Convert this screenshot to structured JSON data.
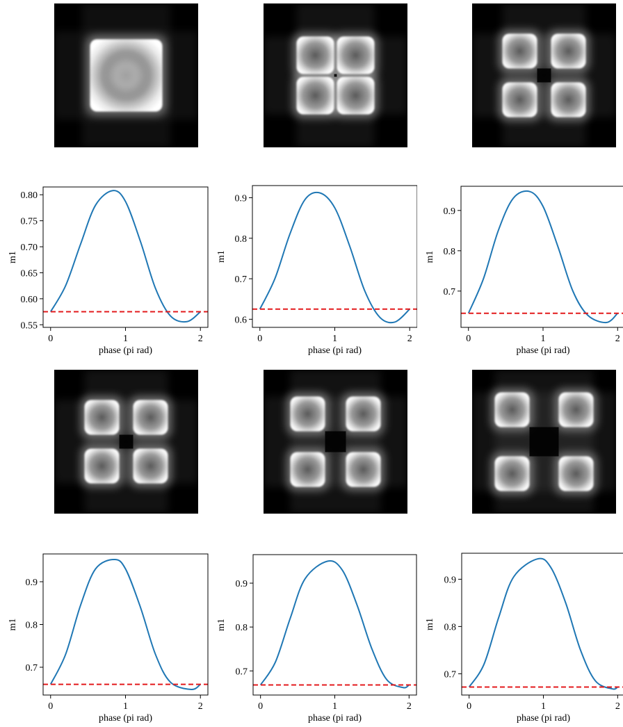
{
  "images": [
    {
      "pattern": "single-square"
    },
    {
      "pattern": "four-lobes-tight"
    },
    {
      "pattern": "four-lobes"
    },
    {
      "pattern": "four-lobes"
    },
    {
      "pattern": "four-lobes-wide"
    },
    {
      "pattern": "four-lobes-wider"
    }
  ],
  "chart_data": [
    {
      "type": "line",
      "xlabel": "phase (pi rad)",
      "ylabel": "m1",
      "xlim": [
        -0.1,
        2.1
      ],
      "ylim": [
        0.545,
        0.815
      ],
      "xticks": [
        0,
        1,
        2
      ],
      "xtick_labels": [
        "0",
        "1",
        "2"
      ],
      "yticks": [
        0.55,
        0.6,
        0.65,
        0.7,
        0.75,
        0.8
      ],
      "ytick_labels": [
        "0.55",
        "0.60",
        "0.65",
        "0.70",
        "0.75",
        "0.80"
      ],
      "series": [
        {
          "x": [
            0,
            0.2,
            0.4,
            0.6,
            0.83,
            1.0,
            1.2,
            1.4,
            1.6,
            1.82,
            2.0
          ],
          "y": [
            0.575,
            0.625,
            0.705,
            0.78,
            0.808,
            0.787,
            0.71,
            0.62,
            0.567,
            0.556,
            0.575
          ],
          "color": "#1f77b4",
          "style": "solid"
        }
      ],
      "hline": {
        "y": 0.575,
        "color": "#e31a1c",
        "style": "dashed"
      }
    },
    {
      "type": "line",
      "xlabel": "phase (pi rad)",
      "ylabel": "m1",
      "xlim": [
        -0.1,
        2.1
      ],
      "ylim": [
        0.58,
        0.93
      ],
      "xticks": [
        0,
        1,
        2
      ],
      "xtick_labels": [
        "0",
        "1",
        "2"
      ],
      "yticks": [
        0.6,
        0.7,
        0.8,
        0.9
      ],
      "ytick_labels": [
        "0.6",
        "0.7",
        "0.8",
        "0.9"
      ],
      "series": [
        {
          "x": [
            0,
            0.2,
            0.4,
            0.6,
            0.8,
            1.0,
            1.2,
            1.4,
            1.6,
            1.8,
            2.0
          ],
          "y": [
            0.625,
            0.7,
            0.81,
            0.895,
            0.912,
            0.875,
            0.78,
            0.67,
            0.605,
            0.593,
            0.625
          ],
          "color": "#1f77b4",
          "style": "solid"
        }
      ],
      "hline": {
        "y": 0.625,
        "color": "#e31a1c",
        "style": "dashed"
      }
    },
    {
      "type": "line",
      "xlabel": "phase (pi rad)",
      "ylabel": "m1",
      "xlim": [
        -0.1,
        2.1
      ],
      "ylim": [
        0.61,
        0.96
      ],
      "xticks": [
        0,
        1,
        2
      ],
      "xtick_labels": [
        "0",
        "1",
        "2"
      ],
      "yticks": [
        0.7,
        0.8,
        0.9
      ],
      "ytick_labels": [
        "0.7",
        "0.8",
        "0.9"
      ],
      "series": [
        {
          "x": [
            0,
            0.2,
            0.4,
            0.6,
            0.82,
            1.0,
            1.2,
            1.4,
            1.6,
            1.85,
            2.0
          ],
          "y": [
            0.645,
            0.73,
            0.85,
            0.93,
            0.947,
            0.91,
            0.81,
            0.7,
            0.64,
            0.622,
            0.645
          ],
          "color": "#1f77b4",
          "style": "solid"
        }
      ],
      "hline": {
        "y": 0.645,
        "color": "#e31a1c",
        "style": "dashed"
      }
    },
    {
      "type": "line",
      "xlabel": "phase (pi rad)",
      "ylabel": "m1",
      "xlim": [
        -0.1,
        2.1
      ],
      "ylim": [
        0.635,
        0.965
      ],
      "xticks": [
        0,
        1,
        2
      ],
      "xtick_labels": [
        "0",
        "1",
        "2"
      ],
      "yticks": [
        0.7,
        0.8,
        0.9
      ],
      "ytick_labels": [
        "0.7",
        "0.8",
        "0.9"
      ],
      "series": [
        {
          "x": [
            0,
            0.2,
            0.4,
            0.6,
            0.85,
            1.0,
            1.2,
            1.4,
            1.6,
            1.88,
            2.0
          ],
          "y": [
            0.66,
            0.73,
            0.845,
            0.93,
            0.952,
            0.93,
            0.84,
            0.73,
            0.665,
            0.648,
            0.66
          ],
          "color": "#1f77b4",
          "style": "solid"
        }
      ],
      "hline": {
        "y": 0.66,
        "color": "#e31a1c",
        "style": "dashed"
      }
    },
    {
      "type": "line",
      "xlabel": "phase (pi rad)",
      "ylabel": "m1",
      "xlim": [
        -0.1,
        2.1
      ],
      "ylim": [
        0.645,
        0.965
      ],
      "xticks": [
        0,
        1,
        2
      ],
      "xtick_labels": [
        "0",
        "1",
        "2"
      ],
      "yticks": [
        0.7,
        0.8,
        0.9
      ],
      "ytick_labels": [
        "0.7",
        "0.8",
        "0.9"
      ],
      "series": [
        {
          "x": [
            0,
            0.2,
            0.4,
            0.6,
            0.9,
            1.1,
            1.3,
            1.5,
            1.7,
            1.92,
            2.0
          ],
          "y": [
            0.668,
            0.72,
            0.82,
            0.91,
            0.95,
            0.93,
            0.85,
            0.75,
            0.68,
            0.662,
            0.668
          ],
          "color": "#1f77b4",
          "style": "solid"
        }
      ],
      "hline": {
        "y": 0.668,
        "color": "#e31a1c",
        "style": "dashed"
      }
    },
    {
      "type": "line",
      "xlabel": "phase (pi rad)",
      "ylabel": "m1",
      "xlim": [
        -0.1,
        2.1
      ],
      "ylim": [
        0.655,
        0.955
      ],
      "xticks": [
        0,
        1,
        2
      ],
      "xtick_labels": [
        "0",
        "1",
        "2"
      ],
      "yticks": [
        0.7,
        0.8,
        0.9
      ],
      "ytick_labels": [
        "0.7",
        "0.8",
        "0.9"
      ],
      "series": [
        {
          "x": [
            0,
            0.2,
            0.4,
            0.6,
            0.92,
            1.1,
            1.3,
            1.5,
            1.7,
            1.93,
            2.0
          ],
          "y": [
            0.672,
            0.72,
            0.82,
            0.905,
            0.943,
            0.925,
            0.85,
            0.75,
            0.685,
            0.668,
            0.672
          ],
          "color": "#1f77b4",
          "style": "solid"
        }
      ],
      "hline": {
        "y": 0.672,
        "color": "#e31a1c",
        "style": "dashed"
      }
    }
  ]
}
